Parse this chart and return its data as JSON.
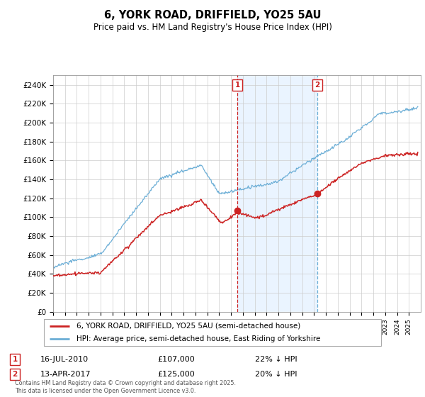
{
  "title": "6, YORK ROAD, DRIFFIELD, YO25 5AU",
  "subtitle": "Price paid vs. HM Land Registry's House Price Index (HPI)",
  "ylim": [
    0,
    250000
  ],
  "yticks": [
    0,
    20000,
    40000,
    60000,
    80000,
    100000,
    120000,
    140000,
    160000,
    180000,
    200000,
    220000,
    240000
  ],
  "ytick_labels": [
    "£0",
    "£20K",
    "£40K",
    "£60K",
    "£80K",
    "£100K",
    "£120K",
    "£140K",
    "£160K",
    "£180K",
    "£200K",
    "£220K",
    "£240K"
  ],
  "hpi_color": "#6baed6",
  "price_color": "#cc2222",
  "sale1_year": 2010.54,
  "sale2_year": 2017.28,
  "sale1_price_val": 107000,
  "sale2_price_val": 125000,
  "sale1_date": "16-JUL-2010",
  "sale1_price": "£107,000",
  "sale1_hpi": "22% ↓ HPI",
  "sale2_date": "13-APR-2017",
  "sale2_price": "£125,000",
  "sale2_hpi": "20% ↓ HPI",
  "legend_label1": "6, YORK ROAD, DRIFFIELD, YO25 5AU (semi-detached house)",
  "legend_label2": "HPI: Average price, semi-detached house, East Riding of Yorkshire",
  "footer": "Contains HM Land Registry data © Crown copyright and database right 2025.\nThis data is licensed under the Open Government Licence v3.0.",
  "xstart": 1995,
  "xend": 2026
}
